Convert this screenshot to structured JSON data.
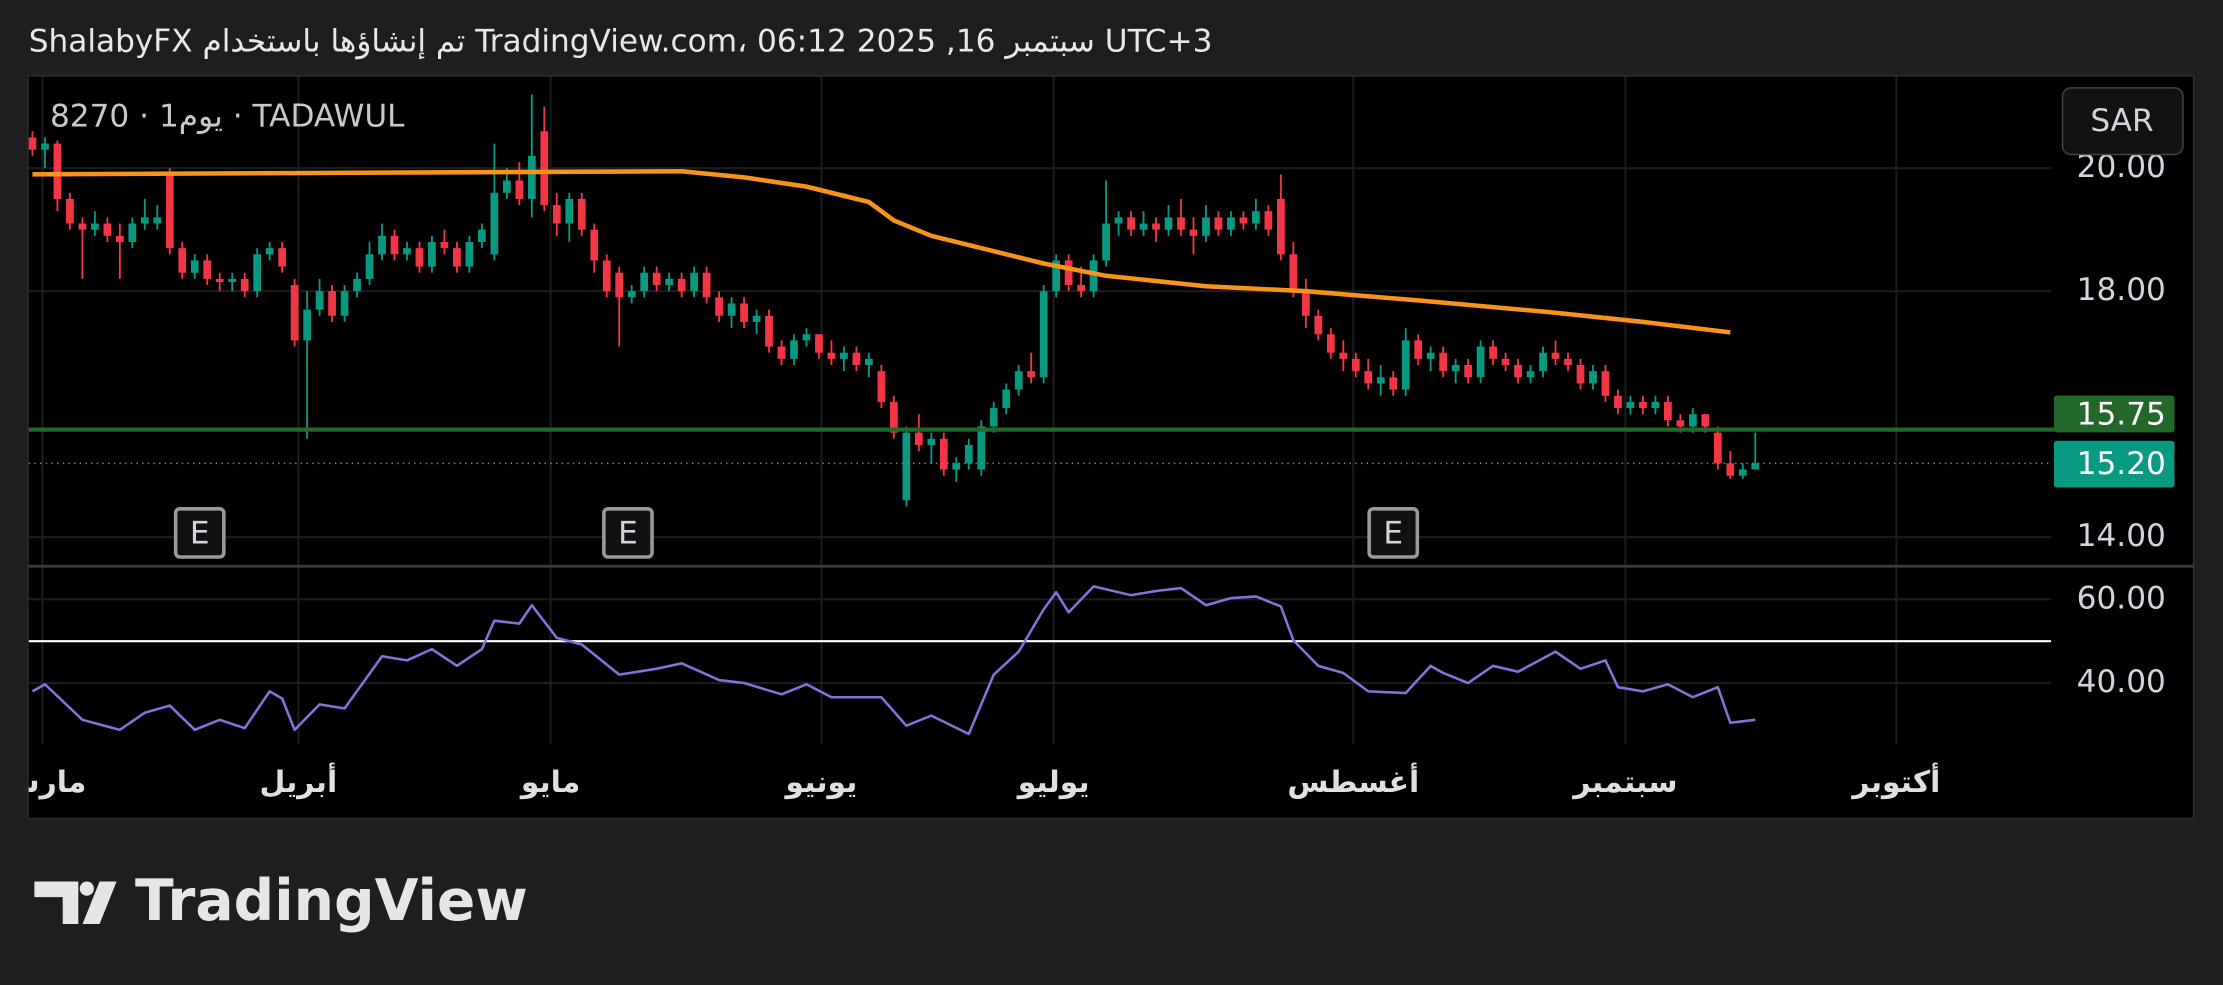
{
  "header": "ShalabyFX تم إنشاؤها باستخدام TradingView.com، 06:12 2025 ,16 سبتمبر UTC+3",
  "brand": "TradingView",
  "chart_data": {
    "type": "candlestick",
    "symbol": "8270 · 1يوم · TADAWUL",
    "currency": "SAR",
    "up_color": "#089981",
    "down_color": "#f23645",
    "xlim": [
      -0.3,
      161.7
    ],
    "xticks": [
      {
        "value": 0.8,
        "label": "مارس"
      },
      {
        "value": 21.3,
        "label": "أبريل"
      },
      {
        "value": 41.5,
        "label": "مايو"
      },
      {
        "value": 63.2,
        "label": "يونيو"
      },
      {
        "value": 81.8,
        "label": "يوليو"
      },
      {
        "value": 105.8,
        "label": "أغسطس"
      },
      {
        "value": 127.6,
        "label": "سبتمبر"
      },
      {
        "value": 149.3,
        "label": "أكتوبر"
      }
    ],
    "ylim": [
      13.54,
      21.49
    ],
    "yticks": [
      {
        "value": 14,
        "label": "14.00"
      },
      {
        "value": 18,
        "label": "18.00"
      },
      {
        "value": 20,
        "label": "20.00"
      }
    ],
    "grid": true,
    "ohlc": [
      [
        20.5,
        20.6,
        20.2,
        20.3
      ],
      [
        20.3,
        20.5,
        20.0,
        20.4
      ],
      [
        20.4,
        20.45,
        19.3,
        19.5
      ],
      [
        19.5,
        19.6,
        19.0,
        19.1
      ],
      [
        19.1,
        19.2,
        18.2,
        19.0
      ],
      [
        19.0,
        19.3,
        18.9,
        19.1
      ],
      [
        19.1,
        19.2,
        18.8,
        18.9
      ],
      [
        18.9,
        19.1,
        18.2,
        18.8
      ],
      [
        18.8,
        19.2,
        18.7,
        19.1
      ],
      [
        19.1,
        19.5,
        19.0,
        19.2
      ],
      [
        19.1,
        19.4,
        19.0,
        19.2
      ],
      [
        19.9,
        20.0,
        18.6,
        18.7
      ],
      [
        18.7,
        18.8,
        18.2,
        18.3
      ],
      [
        18.3,
        18.6,
        18.2,
        18.5
      ],
      [
        18.5,
        18.6,
        18.1,
        18.2
      ],
      [
        18.2,
        18.3,
        18.0,
        18.15
      ],
      [
        18.15,
        18.3,
        18.0,
        18.2
      ],
      [
        18.2,
        18.3,
        17.9,
        18.0
      ],
      [
        18.0,
        18.7,
        17.9,
        18.6
      ],
      [
        18.6,
        18.8,
        18.5,
        18.7
      ],
      [
        18.7,
        18.8,
        18.3,
        18.4
      ],
      [
        18.1,
        18.2,
        17.1,
        17.2
      ],
      [
        17.2,
        18.0,
        15.6,
        17.7
      ],
      [
        17.7,
        18.2,
        17.6,
        18.0
      ],
      [
        18.0,
        18.1,
        17.5,
        17.6
      ],
      [
        17.6,
        18.1,
        17.5,
        18.0
      ],
      [
        18.0,
        18.3,
        17.9,
        18.2
      ],
      [
        18.2,
        18.8,
        18.1,
        18.6
      ],
      [
        18.6,
        19.1,
        18.5,
        18.9
      ],
      [
        18.9,
        19.0,
        18.5,
        18.6
      ],
      [
        18.6,
        18.8,
        18.5,
        18.7
      ],
      [
        18.7,
        18.8,
        18.3,
        18.4
      ],
      [
        18.4,
        18.9,
        18.3,
        18.8
      ],
      [
        18.8,
        19.0,
        18.6,
        18.7
      ],
      [
        18.7,
        18.8,
        18.3,
        18.4
      ],
      [
        18.4,
        18.9,
        18.3,
        18.8
      ],
      [
        18.8,
        19.1,
        18.7,
        19.0
      ],
      [
        18.6,
        20.4,
        18.5,
        19.6
      ],
      [
        19.6,
        20.0,
        19.5,
        19.8
      ],
      [
        19.8,
        20.1,
        19.4,
        19.5
      ],
      [
        19.5,
        21.2,
        19.2,
        20.2
      ],
      [
        20.6,
        21.0,
        19.3,
        19.4
      ],
      [
        19.4,
        19.6,
        18.9,
        19.1
      ],
      [
        19.1,
        19.6,
        18.8,
        19.5
      ],
      [
        19.5,
        19.6,
        18.9,
        19.0
      ],
      [
        19.0,
        19.1,
        18.3,
        18.5
      ],
      [
        18.5,
        18.6,
        17.9,
        18.0
      ],
      [
        18.3,
        18.4,
        17.1,
        17.9
      ],
      [
        17.9,
        18.1,
        17.8,
        18.0
      ],
      [
        18.0,
        18.4,
        17.9,
        18.3
      ],
      [
        18.3,
        18.4,
        18.0,
        18.1
      ],
      [
        18.1,
        18.3,
        18.0,
        18.2
      ],
      [
        18.2,
        18.3,
        17.9,
        18.0
      ],
      [
        18.0,
        18.4,
        17.9,
        18.3
      ],
      [
        18.3,
        18.4,
        17.8,
        17.9
      ],
      [
        17.9,
        18.0,
        17.5,
        17.6
      ],
      [
        17.6,
        17.9,
        17.4,
        17.8
      ],
      [
        17.8,
        17.9,
        17.4,
        17.5
      ],
      [
        17.5,
        17.7,
        17.3,
        17.6
      ],
      [
        17.6,
        17.7,
        17.0,
        17.1
      ],
      [
        17.1,
        17.2,
        16.8,
        16.9
      ],
      [
        16.9,
        17.3,
        16.8,
        17.2
      ],
      [
        17.2,
        17.4,
        17.1,
        17.3
      ],
      [
        17.3,
        17.3,
        16.9,
        17.0
      ],
      [
        17.0,
        17.2,
        16.8,
        16.9
      ],
      [
        16.9,
        17.1,
        16.7,
        17.0
      ],
      [
        17.0,
        17.1,
        16.7,
        16.8
      ],
      [
        16.8,
        17.0,
        16.6,
        16.9
      ],
      [
        16.7,
        16.8,
        16.1,
        16.2
      ],
      [
        16.2,
        16.3,
        15.6,
        15.7
      ],
      [
        14.6,
        15.8,
        14.5,
        15.7
      ],
      [
        15.7,
        16.0,
        15.4,
        15.5
      ],
      [
        15.5,
        15.7,
        15.2,
        15.6
      ],
      [
        15.6,
        15.7,
        15.0,
        15.1
      ],
      [
        15.1,
        15.3,
        14.9,
        15.2
      ],
      [
        15.2,
        15.6,
        15.1,
        15.5
      ],
      [
        15.1,
        15.9,
        15.0,
        15.8
      ],
      [
        15.8,
        16.2,
        15.7,
        16.1
      ],
      [
        16.1,
        16.5,
        16.0,
        16.4
      ],
      [
        16.4,
        16.8,
        16.3,
        16.7
      ],
      [
        16.7,
        17.0,
        16.5,
        16.6
      ],
      [
        16.6,
        18.1,
        16.5,
        18.0
      ],
      [
        18.0,
        18.6,
        17.9,
        18.5
      ],
      [
        18.5,
        18.6,
        18.0,
        18.1
      ],
      [
        18.1,
        18.4,
        17.9,
        18.0
      ],
      [
        18.0,
        18.6,
        17.9,
        18.5
      ],
      [
        18.5,
        19.8,
        18.4,
        19.1
      ],
      [
        19.1,
        19.3,
        18.9,
        19.2
      ],
      [
        19.2,
        19.3,
        18.9,
        19.0
      ],
      [
        19.0,
        19.3,
        18.9,
        19.1
      ],
      [
        19.1,
        19.2,
        18.8,
        19.0
      ],
      [
        19.0,
        19.4,
        18.9,
        19.2
      ],
      [
        19.2,
        19.5,
        18.9,
        19.0
      ],
      [
        19.0,
        19.2,
        18.6,
        18.9
      ],
      [
        18.9,
        19.4,
        18.8,
        19.2
      ],
      [
        19.2,
        19.3,
        18.9,
        19.0
      ],
      [
        19.0,
        19.3,
        18.9,
        19.2
      ],
      [
        19.2,
        19.3,
        19.0,
        19.1
      ],
      [
        19.1,
        19.5,
        19.0,
        19.3
      ],
      [
        19.3,
        19.4,
        18.9,
        19.0
      ],
      [
        19.5,
        19.9,
        18.5,
        18.6
      ],
      [
        18.6,
        18.8,
        17.9,
        18.0
      ],
      [
        18.0,
        18.2,
        17.4,
        17.6
      ],
      [
        17.6,
        17.7,
        17.2,
        17.3
      ],
      [
        17.3,
        17.4,
        16.9,
        17.0
      ],
      [
        17.0,
        17.2,
        16.7,
        16.9
      ],
      [
        16.9,
        17.0,
        16.6,
        16.7
      ],
      [
        16.7,
        16.9,
        16.4,
        16.5
      ],
      [
        16.5,
        16.8,
        16.3,
        16.6
      ],
      [
        16.6,
        16.7,
        16.3,
        16.4
      ],
      [
        16.4,
        17.4,
        16.3,
        17.2
      ],
      [
        17.2,
        17.3,
        16.8,
        16.9
      ],
      [
        16.9,
        17.1,
        16.7,
        17.0
      ],
      [
        17.0,
        17.1,
        16.6,
        16.7
      ],
      [
        16.7,
        16.9,
        16.5,
        16.8
      ],
      [
        16.8,
        16.9,
        16.5,
        16.6
      ],
      [
        16.6,
        17.2,
        16.5,
        17.1
      ],
      [
        17.1,
        17.2,
        16.8,
        16.9
      ],
      [
        16.9,
        17.0,
        16.7,
        16.8
      ],
      [
        16.8,
        16.9,
        16.5,
        16.6
      ],
      [
        16.6,
        16.8,
        16.5,
        16.7
      ],
      [
        16.7,
        17.1,
        16.6,
        17.0
      ],
      [
        17.0,
        17.2,
        16.8,
        16.9
      ],
      [
        16.9,
        17.0,
        16.7,
        16.8
      ],
      [
        16.8,
        16.9,
        16.4,
        16.5
      ],
      [
        16.5,
        16.8,
        16.4,
        16.7
      ],
      [
        16.7,
        16.8,
        16.2,
        16.3
      ],
      [
        16.3,
        16.4,
        16.0,
        16.1
      ],
      [
        16.1,
        16.3,
        16.0,
        16.2
      ],
      [
        16.2,
        16.3,
        16.0,
        16.1
      ],
      [
        16.1,
        16.3,
        16.0,
        16.2
      ],
      [
        16.2,
        16.3,
        15.8,
        15.9
      ],
      [
        15.9,
        16.0,
        15.7,
        15.8
      ],
      [
        15.8,
        16.1,
        15.7,
        16.0
      ],
      [
        16.0,
        16.0,
        15.7,
        15.8
      ],
      [
        15.7,
        15.8,
        15.1,
        15.2
      ],
      [
        15.2,
        15.4,
        14.95,
        15.0
      ],
      [
        15.0,
        15.2,
        14.95,
        15.1
      ],
      [
        15.1,
        15.7,
        15.1,
        15.2
      ]
    ],
    "ma": {
      "color": "#f7931a",
      "x": [
        0,
        20,
        52,
        57,
        62,
        67,
        69,
        72,
        77,
        81,
        86,
        94,
        102,
        111,
        122,
        129,
        136
      ],
      "values": [
        19.9,
        19.92,
        19.95,
        19.85,
        19.7,
        19.45,
        19.15,
        18.9,
        18.65,
        18.45,
        18.25,
        18.08,
        18.0,
        17.85,
        17.65,
        17.5,
        17.33
      ]
    },
    "levels": [
      {
        "value": 15.75,
        "label": "15.75",
        "color": "#22682a"
      }
    ],
    "last_price": {
      "value": 15.2,
      "label": "15.20",
      "color": "#089981"
    },
    "events": [
      {
        "x": 13.4,
        "label": "E"
      },
      {
        "x": 47.7,
        "label": "E"
      },
      {
        "x": 109,
        "label": "E"
      }
    ],
    "rsi": {
      "color": "#8a6fd8",
      "ylim": [
        25.4,
        68.1
      ],
      "yticks": [
        {
          "value": 40,
          "label": "40.00"
        },
        {
          "value": 60,
          "label": "60.00"
        }
      ],
      "level": 50,
      "x": [
        0,
        1,
        4,
        7,
        9,
        11,
        13,
        15,
        17,
        19,
        20,
        21,
        23,
        25,
        28,
        30,
        32,
        34,
        36,
        37,
        39,
        40,
        42,
        44,
        47,
        50,
        52,
        55,
        57,
        60,
        62,
        64,
        68,
        70,
        72,
        75,
        77,
        79,
        81,
        82,
        83,
        85,
        88,
        90,
        92,
        94,
        96,
        98,
        100,
        101,
        103,
        105,
        107,
        110,
        112,
        113,
        115,
        117,
        119,
        122,
        124,
        126,
        127,
        129,
        131,
        133,
        135,
        136,
        138
      ],
      "values": [
        38.0,
        39.7,
        31.2,
        28.8,
        32.9,
        34.6,
        28.8,
        31.2,
        29.2,
        38.0,
        36.3,
        28.8,
        34.9,
        33.9,
        46.4,
        45.4,
        48.1,
        44.1,
        48.1,
        54.9,
        54.2,
        58.6,
        50.8,
        49.2,
        42.0,
        43.4,
        44.7,
        40.7,
        40.0,
        37.3,
        39.7,
        36.6,
        36.6,
        29.8,
        32.2,
        27.8,
        42.0,
        47.5,
        57.6,
        61.7,
        56.9,
        63.1,
        61.0,
        62.0,
        62.7,
        58.6,
        60.3,
        60.7,
        58.3,
        50.2,
        44.1,
        42.4,
        38.0,
        37.6,
        44.1,
        42.4,
        40.0,
        44.1,
        42.7,
        47.5,
        43.4,
        45.4,
        39.0,
        38.0,
        39.7,
        36.6,
        39.0,
        30.5,
        31.2
      ]
    }
  }
}
